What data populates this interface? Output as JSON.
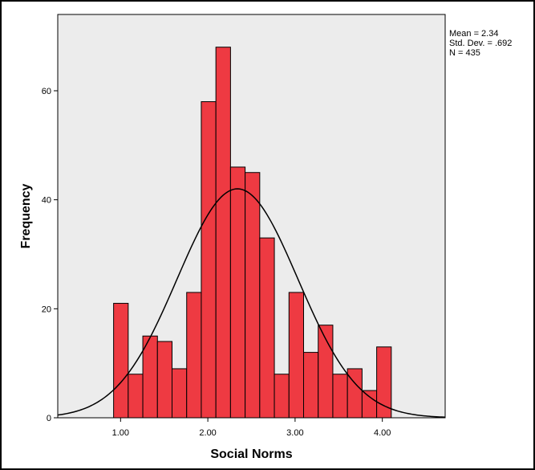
{
  "chart_data": {
    "type": "bar",
    "subtype": "histogram",
    "xlabel": "Social Norms",
    "ylabel": "Frequency",
    "xlim": [
      0.28,
      4.72
    ],
    "ylim": [
      0,
      74
    ],
    "x_ticks": [
      1.0,
      2.0,
      3.0,
      4.0
    ],
    "x_tick_labels": [
      "1.00",
      "2.00",
      "3.00",
      "4.00"
    ],
    "y_ticks": [
      0,
      20,
      40,
      60
    ],
    "y_tick_labels": [
      "0",
      "20",
      "40",
      "60"
    ],
    "bin_edges": [
      0.92,
      1.0875,
      1.255,
      1.4225,
      1.59,
      1.7575,
      1.925,
      2.0925,
      2.26,
      2.4275,
      2.595,
      2.7625,
      2.93,
      3.0975,
      3.265,
      3.4325,
      3.6,
      3.7675,
      3.935,
      4.1025
    ],
    "values": [
      21,
      8,
      15,
      14,
      9,
      23,
      58,
      68,
      46,
      45,
      33,
      8,
      23,
      12,
      17,
      8,
      9,
      5,
      13
    ],
    "bar_color": "#ee3a42",
    "plot_background": "#ececec",
    "normal_curve": {
      "mean": 2.34,
      "sd": 0.692,
      "n": 435
    },
    "grid": false,
    "stats": [
      "Mean = 2.34",
      "Std. Dev. = .692",
      "N = 435"
    ]
  }
}
